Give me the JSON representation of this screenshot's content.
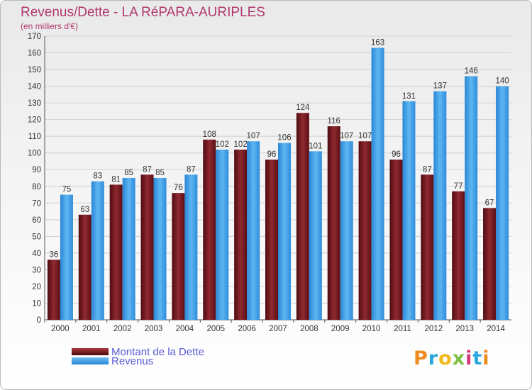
{
  "title": "Revenus/Dette - LA RéPARA-AURIPLES",
  "subtitle": "(en milliers d'€)",
  "colors": {
    "dette": "#7a1a1f",
    "revenus": "#3b9ee6",
    "axis_text": "#333333",
    "grid": "#d0d0d0"
  },
  "legend": [
    {
      "label": "Montant de la Dette",
      "color": "#7a1a1f"
    },
    {
      "label": "Revenus",
      "color": "#3b9ee6"
    }
  ],
  "logo": "Proxiti",
  "chart_data": {
    "type": "bar",
    "title": "Revenus/Dette - LA RéPARA-AURIPLES",
    "subtitle": "(en milliers d'€)",
    "categories": [
      "2000",
      "2001",
      "2002",
      "2003",
      "2004",
      "2005",
      "2006",
      "2007",
      "2008",
      "2009",
      "2010",
      "2011",
      "2012",
      "2013",
      "2014"
    ],
    "series": [
      {
        "name": "Montant de la Dette",
        "values": [
          36,
          63,
          81,
          87,
          76,
          108,
          102,
          96,
          124,
          116,
          107,
          96,
          87,
          77,
          67
        ]
      },
      {
        "name": "Revenus",
        "values": [
          75,
          83,
          85,
          85,
          87,
          102,
          107,
          106,
          101,
          107,
          163,
          131,
          137,
          146,
          140
        ]
      }
    ],
    "ylim": [
      0,
      170
    ],
    "yticks": [
      0,
      10,
      20,
      30,
      40,
      50,
      60,
      70,
      80,
      90,
      100,
      110,
      120,
      130,
      140,
      150,
      160,
      170
    ],
    "grid": true,
    "legend_position": "bottom-left"
  }
}
